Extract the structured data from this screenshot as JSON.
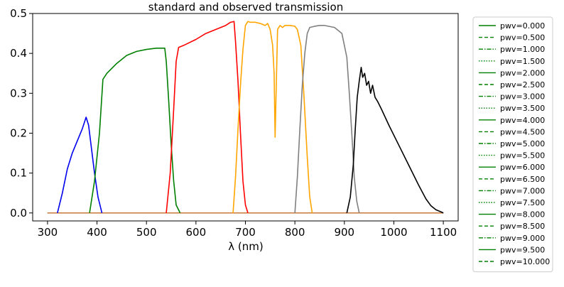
{
  "chart_data": {
    "type": "line",
    "title": "standard and observed transmission",
    "xlabel": "λ (nm)",
    "ylabel": "",
    "xlim": [
      270,
      1130
    ],
    "ylim": [
      -0.02,
      0.5
    ],
    "xticks": [
      300,
      400,
      500,
      600,
      700,
      800,
      900,
      1000,
      1100
    ],
    "yticks": [
      0.0,
      0.1,
      0.2,
      0.3,
      0.4,
      0.5
    ],
    "xtick_labels": [
      "300",
      "400",
      "500",
      "600",
      "700",
      "800",
      "900",
      "1000",
      "1100"
    ],
    "ytick_labels": [
      "0.0",
      "0.1",
      "0.2",
      "0.3",
      "0.4",
      "0.5"
    ],
    "grid": false,
    "legend_position": "outside-right",
    "baseline": {
      "colors": [
        "#1f3fbf",
        "#2e6b2e",
        "#cc3333",
        "#f39c12",
        "#888888",
        "#cc7733"
      ],
      "x": [
        300,
        1100
      ],
      "values": [
        0,
        0
      ]
    },
    "series": [
      {
        "color": "#0000ee",
        "x": [
          320,
          330,
          340,
          350,
          360,
          370,
          378,
          383,
          388,
          395,
          402,
          410
        ],
        "values": [
          0.0,
          0.05,
          0.11,
          0.15,
          0.18,
          0.21,
          0.24,
          0.22,
          0.17,
          0.1,
          0.04,
          0.0
        ]
      },
      {
        "color": "#008000",
        "x": [
          385,
          395,
          405,
          412,
          420,
          440,
          460,
          480,
          500,
          520,
          537,
          540,
          545,
          550,
          555,
          560,
          568
        ],
        "values": [
          0.0,
          0.08,
          0.2,
          0.335,
          0.35,
          0.375,
          0.395,
          0.405,
          0.41,
          0.413,
          0.413,
          0.38,
          0.28,
          0.17,
          0.08,
          0.02,
          0.0
        ]
      },
      {
        "color": "#ff0000",
        "x": [
          540,
          548,
          555,
          560,
          565,
          575,
          600,
          620,
          640,
          660,
          670,
          677,
          680,
          685,
          690,
          695,
          700,
          705
        ],
        "values": [
          0.0,
          0.1,
          0.26,
          0.38,
          0.415,
          0.42,
          0.435,
          0.45,
          0.46,
          0.47,
          0.478,
          0.48,
          0.43,
          0.33,
          0.2,
          0.08,
          0.02,
          0.0
        ]
      },
      {
        "color": "#ffa500",
        "x": [
          675,
          680,
          685,
          690,
          695,
          700,
          705,
          710,
          720,
          730,
          740,
          745,
          750,
          755,
          758,
          760,
          762,
          765,
          770,
          775,
          780,
          790,
          800,
          805,
          812,
          818,
          825,
          830,
          835
        ],
        "values": [
          0.0,
          0.09,
          0.21,
          0.32,
          0.41,
          0.47,
          0.48,
          0.478,
          0.478,
          0.475,
          0.47,
          0.475,
          0.46,
          0.42,
          0.35,
          0.19,
          0.3,
          0.46,
          0.47,
          0.465,
          0.47,
          0.47,
          0.468,
          0.46,
          0.42,
          0.3,
          0.14,
          0.04,
          0.0
        ]
      },
      {
        "color": "#808080",
        "x": [
          800,
          805,
          810,
          815,
          820,
          825,
          830,
          840,
          850,
          860,
          880,
          895,
          900,
          905,
          910,
          915,
          920,
          925,
          930
        ],
        "values": [
          0.0,
          0.09,
          0.21,
          0.32,
          0.4,
          0.45,
          0.465,
          0.468,
          0.47,
          0.47,
          0.465,
          0.45,
          0.42,
          0.39,
          0.3,
          0.2,
          0.09,
          0.03,
          0.0
        ]
      },
      {
        "color": "#000000",
        "x": [
          905,
          912,
          918,
          922,
          926,
          930,
          934,
          937,
          941,
          945,
          949,
          953,
          957,
          962,
          967,
          975,
          990,
          1010,
          1030,
          1050,
          1065,
          1075,
          1085,
          1095,
          1100
        ],
        "values": [
          0.0,
          0.04,
          0.12,
          0.21,
          0.29,
          0.33,
          0.365,
          0.34,
          0.35,
          0.32,
          0.33,
          0.3,
          0.32,
          0.29,
          0.28,
          0.26,
          0.22,
          0.17,
          0.12,
          0.07,
          0.035,
          0.018,
          0.008,
          0.003,
          0.0
        ]
      }
    ],
    "legend": {
      "color": "#008000",
      "entries": [
        {
          "label": "pwv=0.000",
          "style": "solid"
        },
        {
          "label": "pwv=0.500",
          "style": "dashed"
        },
        {
          "label": "pwv=1.000",
          "style": "dashdot"
        },
        {
          "label": "pwv=1.500",
          "style": "dotted"
        },
        {
          "label": "pwv=2.000",
          "style": "solid"
        },
        {
          "label": "pwv=2.500",
          "style": "dashed"
        },
        {
          "label": "pwv=3.000",
          "style": "dashdot"
        },
        {
          "label": "pwv=3.500",
          "style": "dotted"
        },
        {
          "label": "pwv=4.000",
          "style": "solid"
        },
        {
          "label": "pwv=4.500",
          "style": "dashed"
        },
        {
          "label": "pwv=5.000",
          "style": "dashdot"
        },
        {
          "label": "pwv=5.500",
          "style": "dotted"
        },
        {
          "label": "pwv=6.000",
          "style": "solid"
        },
        {
          "label": "pwv=6.500",
          "style": "dashed"
        },
        {
          "label": "pwv=7.000",
          "style": "dashdot"
        },
        {
          "label": "pwv=7.500",
          "style": "dotted"
        },
        {
          "label": "pwv=8.000",
          "style": "solid"
        },
        {
          "label": "pwv=8.500",
          "style": "dashed"
        },
        {
          "label": "pwv=9.000",
          "style": "dashdot"
        },
        {
          "label": "pwv=9.500",
          "style": "solid"
        },
        {
          "label": "pwv=10.000",
          "style": "dashed"
        }
      ]
    }
  }
}
